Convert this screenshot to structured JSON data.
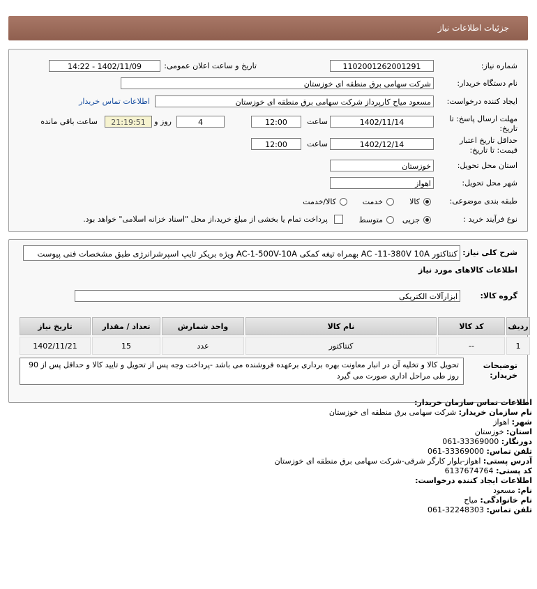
{
  "header": {
    "title": "جزئیات اطلاعات نیاز"
  },
  "need_number": {
    "label": "شماره نیاز:",
    "value": "1102001262001291"
  },
  "announce": {
    "label": "تاریخ و ساعت اعلان عمومی:",
    "value": "1402/11/09 - 14:22"
  },
  "buyer_org": {
    "label": "نام دستگاه خریدار:",
    "value": "شرکت سهامی برق منطقه ای خوزستان"
  },
  "requester": {
    "label": "ایجاد کننده درخواست:",
    "value": "مسعود میاح کارپرداز شرکت سهامی برق منطقه ای خوزستان",
    "contact_link": "اطلاعات تماس خریدار"
  },
  "reply_deadline": {
    "label": [
      "مهلت ارسال پاسخ: تا",
      "تاریخ:"
    ],
    "date": "1402/11/14",
    "time_label": "ساعت",
    "time": "12:00",
    "days": "4",
    "days_label": "روز و",
    "remaining": "21:19:51",
    "remaining_label": "ساعت باقی مانده"
  },
  "price_validity": {
    "label": [
      "حداقل تاریخ اعتبار",
      "قیمت: تا تاریخ:"
    ],
    "date": "1402/12/14",
    "time_label": "ساعت",
    "time": "12:00"
  },
  "province": {
    "label": "استان محل تحویل:",
    "value": "خوزستان"
  },
  "city": {
    "label": "شهر محل تحویل:",
    "value": "اهواز"
  },
  "category": {
    "label": "طبقه بندی موضوعی:",
    "options": [
      "کالا",
      "خدمت",
      "کالا/خدمت"
    ],
    "selected_index": 0
  },
  "process": {
    "label": "نوع فرآیند خرید :",
    "options": [
      "جزیی",
      "متوسط"
    ],
    "selected_index": 0,
    "treasury_note": "پرداخت تمام یا بخشی از مبلغ خرید،از محل \"اسناد خزانه اسلامی\" خواهد بود."
  },
  "description": {
    "label": "شرح کلی نیاز:",
    "value": "کنتاکتور AC -11-380V 10A بهمراه تیغه کمکی AC-1-500V-10A ویژه بریکر تایپ اسپرشرانرژی طبق مشخصات فنی پیوست"
  },
  "goods_title": "اطلاعات کالاهای مورد نیاز",
  "goods_group": {
    "label": "گروه کالا:",
    "value": "ابزارآلات الکتریکی"
  },
  "table": {
    "headers": [
      "ردیف",
      "کد کالا",
      "نام کالا",
      "واحد شمارش",
      "تعداد / مقدار",
      "تاریخ نیاز"
    ],
    "rows": [
      [
        "1",
        "--",
        "کنتاکتور",
        "عدد",
        "15",
        "1402/11/21"
      ]
    ]
  },
  "buyer_notes": {
    "label": [
      "توضیحات",
      "خریدار:"
    ],
    "value": "تحویل کالا و تخلیه آن در انبار معاونت بهره برداری برعهده فروشنده می باشد -پرداخت وجه پس از تحویل و تایید کالا و حداقل پس از 90 روز طی مراحل اداری صورت می گیرد"
  },
  "contact": {
    "title": "اطلاعات تماس سازمان خریدار:",
    "items": [
      {
        "label": "نام سازمان خریدار:",
        "value": "شرکت سهامی برق منطقه ای خوزستان"
      },
      {
        "label": "شهر:",
        "value": "اهواز"
      },
      {
        "label": "استان:",
        "value": "خوزستان"
      },
      {
        "label": "دورنگار:",
        "value": "33369000-061"
      },
      {
        "label": "تلفن تماس:",
        "value": "33369000-061"
      },
      {
        "label": "آدرس پستی:",
        "value": "اهواز-بلوار کارگر شرقی-شرکت سهامی برق منطقه ای خوزستان"
      },
      {
        "label": "کد پستی:",
        "value": "6137674764"
      }
    ]
  },
  "creator": {
    "title": "اطلاعات ایجاد کننده درخواست:",
    "items": [
      {
        "label": "نام:",
        "value": "مسعود"
      },
      {
        "label": "نام خانوادگی:",
        "value": "میاح"
      },
      {
        "label": "تلفن تماس:",
        "value": "32248303-061"
      }
    ]
  }
}
